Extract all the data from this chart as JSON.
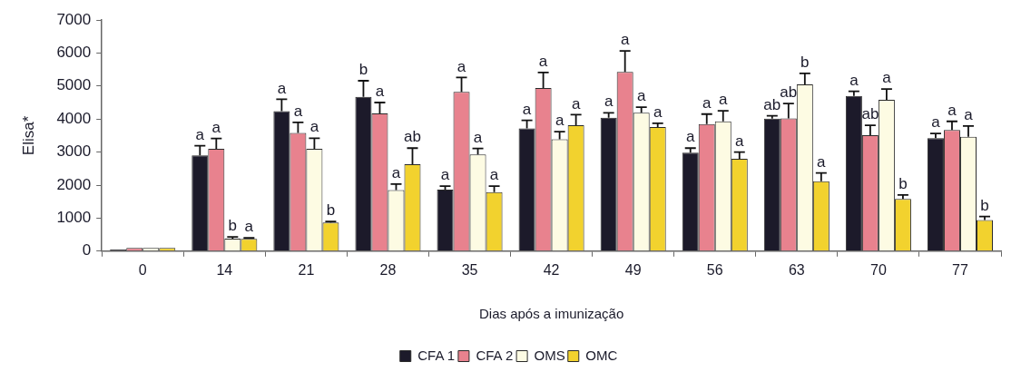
{
  "chart_data": {
    "type": "bar",
    "categories": [
      "0",
      "14",
      "21",
      "28",
      "35",
      "42",
      "49",
      "56",
      "63",
      "70",
      "77"
    ],
    "xlabel": "Dias após a imunização",
    "ylabel": "Elisa*",
    "ylim": [
      0,
      7000
    ],
    "yticks": [
      0,
      1000,
      2000,
      3000,
      4000,
      5000,
      6000,
      7000
    ],
    "legend": "bottom",
    "series": [
      {
        "name": "CFA 1",
        "color": "#1c1a2a",
        "values": [
          50,
          2900,
          4240,
          4670,
          1860,
          3720,
          4040,
          2980,
          4010,
          4700,
          3420
        ],
        "errors": [
          null,
          [
            2900,
            3190
          ],
          [
            4240,
            4600
          ],
          [
            4670,
            5160
          ],
          [
            1860,
            1970
          ],
          [
            3720,
            3960
          ],
          [
            4040,
            4190
          ],
          [
            2980,
            3120
          ],
          [
            4010,
            4100
          ],
          [
            4700,
            4840
          ],
          [
            3420,
            3560
          ]
        ],
        "value_labels": [
          null,
          "a",
          "a",
          "b",
          "a",
          "a",
          "a",
          "a",
          "ab",
          "a",
          "a"
        ]
      },
      {
        "name": "CFA 2",
        "color": "#e8828e",
        "values": [
          100,
          3100,
          3580,
          4170,
          4820,
          4940,
          5430,
          3850,
          4020,
          3510,
          3670
        ],
        "errors": [
          null,
          [
            3100,
            3410
          ],
          [
            3580,
            3900
          ],
          [
            4170,
            4500
          ],
          [
            4820,
            5260
          ],
          [
            4940,
            5410
          ],
          [
            5430,
            6060
          ],
          [
            3850,
            4150
          ],
          [
            4020,
            4470
          ],
          [
            3510,
            3810
          ],
          [
            3670,
            3930
          ]
        ],
        "value_labels": [
          null,
          "a",
          "a",
          "a",
          "a",
          "a",
          "a",
          "a",
          "ab",
          "ab",
          "a"
        ]
      },
      {
        "name": "OMS",
        "color": "#fdfbe3",
        "values": [
          100,
          380,
          3100,
          1850,
          2930,
          3390,
          4190,
          3930,
          5050,
          4580,
          3460
        ],
        "errors": [
          null,
          [
            380,
            430
          ],
          [
            3100,
            3420
          ],
          [
            1850,
            2030
          ],
          [
            2930,
            3110
          ],
          [
            3390,
            3620
          ],
          [
            4190,
            4360
          ],
          [
            3930,
            4250
          ],
          [
            5050,
            5380
          ],
          [
            4580,
            4910
          ],
          [
            3460,
            3790
          ]
        ],
        "value_labels": [
          null,
          "b",
          "a",
          "a",
          "a",
          "a",
          "a",
          "a",
          "b",
          "a",
          "a"
        ]
      },
      {
        "name": "OMC",
        "color": "#f2d22e",
        "values": [
          100,
          370,
          870,
          2630,
          1790,
          3810,
          3760,
          2800,
          2120,
          1580,
          940
        ],
        "errors": [
          null,
          [
            370,
            400
          ],
          [
            870,
            900
          ],
          [
            2630,
            3120
          ],
          [
            1790,
            1970
          ],
          [
            3810,
            4130
          ],
          [
            3760,
            3870
          ],
          [
            2800,
            3000
          ],
          [
            2120,
            2370
          ],
          [
            1580,
            1700
          ],
          [
            940,
            1050
          ]
        ],
        "value_labels": [
          null,
          "a",
          "b",
          "ab",
          "a",
          "a",
          "a",
          "a",
          "a",
          "b",
          "b"
        ]
      }
    ]
  }
}
